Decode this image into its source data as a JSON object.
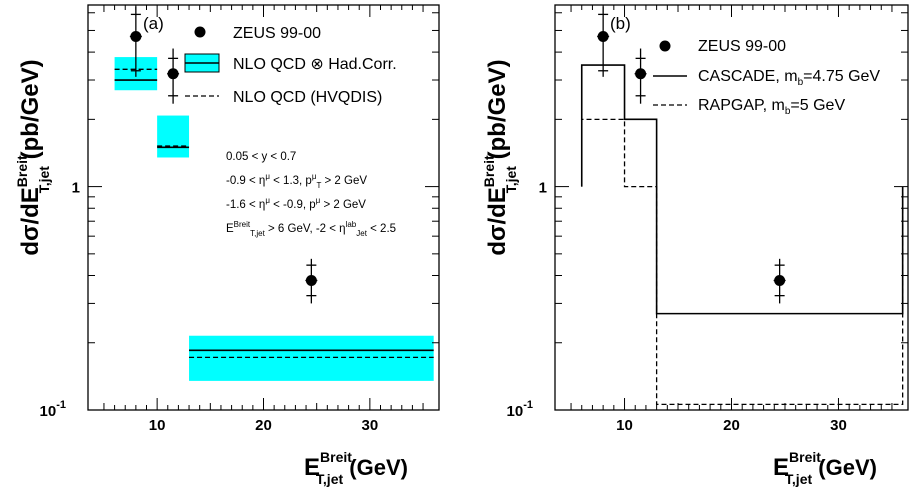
{
  "chart_data": [
    {
      "type": "scatter",
      "panel_label": "(a)",
      "xlabel": {
        "main": "E",
        "sup": "Breit",
        "sub": "T,jet",
        "unit": "(GeV)"
      },
      "ylabel": {
        "main": "dσ/dE",
        "sup": "Breit",
        "sub": "T,jet",
        "unit": "(pb/GeV)"
      },
      "xlim": [
        3.5,
        36.5
      ],
      "ylim": [
        0.1,
        6.5
      ],
      "y_scale": "log",
      "xticks": [
        {
          "value": 10,
          "label": "10"
        },
        {
          "value": 20,
          "label": "20"
        },
        {
          "value": 30,
          "label": "30"
        }
      ],
      "yticks": [
        {
          "value": 1,
          "label": "1"
        },
        {
          "value": 0.1,
          "label": "10",
          "exp": "-1"
        }
      ],
      "data_series": {
        "name": "ZEUS 99-00",
        "points": [
          {
            "x": 8.0,
            "y": 4.7,
            "stat_low": 3.3,
            "stat_high": 5.9,
            "tot_low": 3.1,
            "tot_high": 6.4
          },
          {
            "x": 11.5,
            "y": 3.2,
            "stat_low": 2.55,
            "stat_high": 3.75,
            "tot_low": 2.35,
            "tot_high": 4.15
          },
          {
            "x": 24.5,
            "y": 0.38,
            "stat_low": 0.325,
            "stat_high": 0.445,
            "tot_low": 0.3,
            "tot_high": 0.475
          }
        ]
      },
      "theory": [
        {
          "name": "NLO QCD ⊗ Had.Corr.",
          "style": "band-solid",
          "band_color": "#00ffff",
          "bins": [
            {
              "xmin": 6,
              "xmax": 10,
              "central": 3.0,
              "band_low": 2.7,
              "band_high": 3.8
            },
            {
              "xmin": 10,
              "xmax": 13,
              "central": 1.5,
              "band_low": 1.35,
              "band_high": 2.08
            },
            {
              "xmin": 13,
              "xmax": 36,
              "central": 0.185,
              "band_low": 0.135,
              "band_high": 0.215
            }
          ]
        },
        {
          "name": "NLO QCD (HVQDIS)",
          "style": "dashed",
          "bins": [
            {
              "xmin": 6,
              "xmax": 10,
              "value": 3.35
            },
            {
              "xmin": 10,
              "xmax": 13,
              "value": 1.52
            },
            {
              "xmin": 13,
              "xmax": 36,
              "value": 0.172
            }
          ]
        }
      ],
      "cuts": [
        [
          {
            "t": "0.05 < y < 0.7"
          }
        ],
        [
          {
            "t": "-0.9 < η"
          },
          {
            "t": "μ",
            "sup": true
          },
          {
            "t": " < 1.3,  p"
          },
          {
            "t": "μ",
            "sup": true
          },
          {
            "t": "T",
            "sub": true
          },
          {
            "t": " > 2 GeV"
          }
        ],
        [
          {
            "t": "-1.6 < η"
          },
          {
            "t": "μ",
            "sup": true
          },
          {
            "t": " < -0.9,  p"
          },
          {
            "t": "μ",
            "sup": true
          },
          {
            "t": " > 2 GeV"
          }
        ],
        [
          {
            "t": "E"
          },
          {
            "t": "Breit",
            "sup": true
          },
          {
            "t": "T,jet",
            "sub": true
          },
          {
            "t": " > 6 GeV, -2 < η"
          },
          {
            "t": "lab",
            "sup": true
          },
          {
            "t": "Jet",
            "sub": true
          },
          {
            "t": " < 2.5"
          }
        ]
      ]
    },
    {
      "type": "scatter",
      "panel_label": "(b)",
      "xlabel": {
        "main": "E",
        "sup": "Breit",
        "sub": "T,jet",
        "unit": "(GeV)"
      },
      "ylabel": {
        "main": "dσ/dE",
        "sup": "Breit",
        "sub": "T,jet",
        "unit": "(pb/GeV)"
      },
      "xlim": [
        3.5,
        36.5
      ],
      "ylim": [
        0.1,
        6.5
      ],
      "y_scale": "log",
      "xticks": [
        {
          "value": 10,
          "label": "10"
        },
        {
          "value": 20,
          "label": "20"
        },
        {
          "value": 30,
          "label": "30"
        }
      ],
      "yticks": [
        {
          "value": 1,
          "label": "1"
        },
        {
          "value": 0.1,
          "label": "10",
          "exp": "-1"
        }
      ],
      "data_series": {
        "name": "ZEUS 99-00",
        "points": [
          {
            "x": 8.0,
            "y": 4.7,
            "stat_low": 3.3,
            "stat_high": 5.9,
            "tot_low": 3.1,
            "tot_high": 6.4
          },
          {
            "x": 11.5,
            "y": 3.2,
            "stat_low": 2.55,
            "stat_high": 3.75,
            "tot_low": 2.35,
            "tot_high": 4.15
          },
          {
            "x": 24.5,
            "y": 0.38,
            "stat_low": 0.325,
            "stat_high": 0.445,
            "tot_low": 0.3,
            "tot_high": 0.475
          }
        ]
      },
      "theory": [
        {
          "name": "CASCADE, m",
          "name_sub": "b",
          "name_suffix": "=4.75 GeV",
          "style": "solid",
          "bins": [
            {
              "xmin": 6,
              "xmax": 10,
              "value": 3.5
            },
            {
              "xmin": 10,
              "xmax": 13,
              "value": 2.0
            },
            {
              "xmin": 13,
              "xmax": 36,
              "value": 0.27
            }
          ]
        },
        {
          "name": "RAPGAP, m",
          "name_sub": "b",
          "name_suffix": "=5 GeV",
          "style": "dashed",
          "bins": [
            {
              "xmin": 6,
              "xmax": 10,
              "value": 2.0
            },
            {
              "xmin": 10,
              "xmax": 13,
              "value": 1.0
            },
            {
              "xmin": 13,
              "xmax": 36,
              "value": 0.106
            }
          ]
        }
      ]
    }
  ]
}
